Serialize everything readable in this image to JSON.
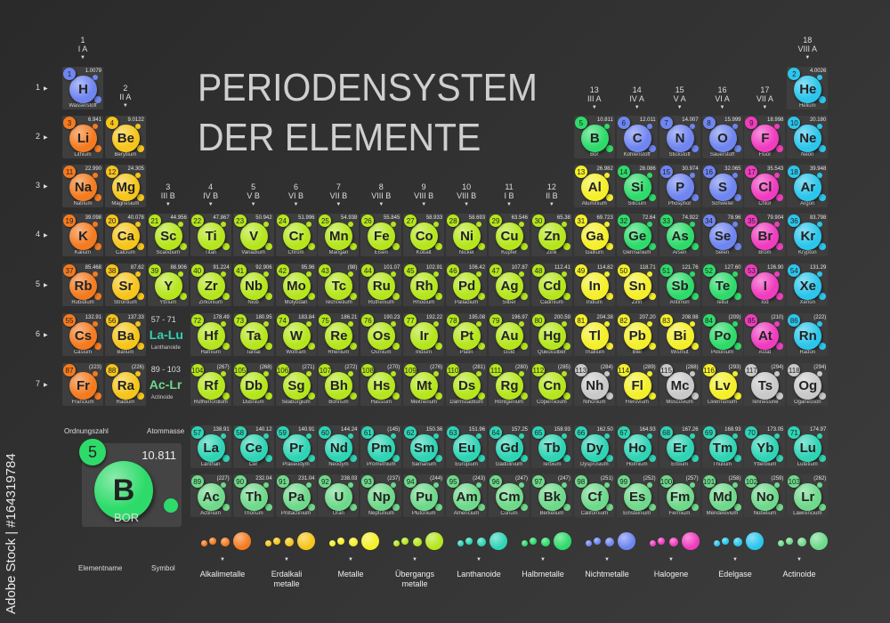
{
  "title": {
    "line1": "PERIODENSYSTEM",
    "line2": "DER ELEMENTE"
  },
  "side_watermark": "Adobe Stock | #164319784",
  "category_colors": {
    "alkali": "#f47b20",
    "alkaline": "#f6c51b",
    "transition": "#b5e61d",
    "metal": "#f4ef2a",
    "lanthanoid": "#2fd4b5",
    "metalloid": "#2edb6a",
    "nonmetal": "#6f85f0",
    "halogen": "#f03cbf",
    "noble": "#2cc6ec",
    "actinoid": "#6fd98b",
    "unknown": "#c9c9c9"
  },
  "groups": [
    {
      "n": "1",
      "r": "I A"
    },
    {
      "n": "2",
      "r": "II A"
    },
    {
      "n": "3",
      "r": "III B"
    },
    {
      "n": "4",
      "r": "IV B"
    },
    {
      "n": "5",
      "r": "V B"
    },
    {
      "n": "6",
      "r": "VI B"
    },
    {
      "n": "7",
      "r": "VII B"
    },
    {
      "n": "8",
      "r": "VIII B"
    },
    {
      "n": "9",
      "r": "VIII B"
    },
    {
      "n": "10",
      "r": "VIII B"
    },
    {
      "n": "11",
      "r": "I B"
    },
    {
      "n": "12",
      "r": "II B"
    },
    {
      "n": "13",
      "r": "III A"
    },
    {
      "n": "14",
      "r": "IV A"
    },
    {
      "n": "15",
      "r": "V A"
    },
    {
      "n": "16",
      "r": "VI A"
    },
    {
      "n": "17",
      "r": "VII A"
    },
    {
      "n": "18",
      "r": "VIII A"
    }
  ],
  "periods": [
    "1",
    "2",
    "3",
    "4",
    "5",
    "6",
    "7"
  ],
  "elements": [
    {
      "n": "1",
      "s": "H",
      "name": "Wasserstoff",
      "m": "1.0079",
      "c": "nonmetal",
      "p": 1,
      "g": 1
    },
    {
      "n": "2",
      "s": "He",
      "name": "Helium",
      "m": "4.0026",
      "c": "noble",
      "p": 1,
      "g": 18
    },
    {
      "n": "3",
      "s": "Li",
      "name": "Lithium",
      "m": "6.941",
      "c": "alkali",
      "p": 2,
      "g": 1
    },
    {
      "n": "4",
      "s": "Be",
      "name": "Beryllium",
      "m": "9.0122",
      "c": "alkaline",
      "p": 2,
      "g": 2
    },
    {
      "n": "5",
      "s": "B",
      "name": "Bor",
      "m": "10.811",
      "c": "metalloid",
      "p": 2,
      "g": 13
    },
    {
      "n": "6",
      "s": "C",
      "name": "Kohlenstoff",
      "m": "12.011",
      "c": "nonmetal",
      "p": 2,
      "g": 14
    },
    {
      "n": "7",
      "s": "N",
      "name": "Stickstoff",
      "m": "14.007",
      "c": "nonmetal",
      "p": 2,
      "g": 15
    },
    {
      "n": "8",
      "s": "O",
      "name": "Sauerstoff",
      "m": "15.999",
      "c": "nonmetal",
      "p": 2,
      "g": 16
    },
    {
      "n": "9",
      "s": "F",
      "name": "Fluor",
      "m": "18.998",
      "c": "halogen",
      "p": 2,
      "g": 17
    },
    {
      "n": "10",
      "s": "Ne",
      "name": "Neon",
      "m": "20.180",
      "c": "noble",
      "p": 2,
      "g": 18
    },
    {
      "n": "11",
      "s": "Na",
      "name": "Natrium",
      "m": "22.990",
      "c": "alkali",
      "p": 3,
      "g": 1
    },
    {
      "n": "12",
      "s": "Mg",
      "name": "Magnesium",
      "m": "24.305",
      "c": "alkaline",
      "p": 3,
      "g": 2
    },
    {
      "n": "13",
      "s": "Al",
      "name": "Aluminium",
      "m": "26.982",
      "c": "metal",
      "p": 3,
      "g": 13
    },
    {
      "n": "14",
      "s": "Si",
      "name": "Silicium",
      "m": "28.086",
      "c": "metalloid",
      "p": 3,
      "g": 14
    },
    {
      "n": "15",
      "s": "P",
      "name": "Phosphor",
      "m": "30.974",
      "c": "nonmetal",
      "p": 3,
      "g": 15
    },
    {
      "n": "16",
      "s": "S",
      "name": "Schwefel",
      "m": "32.065",
      "c": "nonmetal",
      "p": 3,
      "g": 16
    },
    {
      "n": "17",
      "s": "Cl",
      "name": "Chlor",
      "m": "35.543",
      "c": "halogen",
      "p": 3,
      "g": 17
    },
    {
      "n": "18",
      "s": "Ar",
      "name": "Argon",
      "m": "39.948",
      "c": "noble",
      "p": 3,
      "g": 18
    },
    {
      "n": "19",
      "s": "K",
      "name": "Kalium",
      "m": "39.098",
      "c": "alkali",
      "p": 4,
      "g": 1
    },
    {
      "n": "20",
      "s": "Ca",
      "name": "Calcium",
      "m": "40.078",
      "c": "alkaline",
      "p": 4,
      "g": 2
    },
    {
      "n": "21",
      "s": "Sc",
      "name": "Scandium",
      "m": "44.956",
      "c": "transition",
      "p": 4,
      "g": 3
    },
    {
      "n": "22",
      "s": "Ti",
      "name": "Titan",
      "m": "47.867",
      "c": "transition",
      "p": 4,
      "g": 4
    },
    {
      "n": "23",
      "s": "V",
      "name": "Vanadium",
      "m": "50.942",
      "c": "transition",
      "p": 4,
      "g": 5
    },
    {
      "n": "24",
      "s": "Cr",
      "name": "Chrom",
      "m": "51.996",
      "c": "transition",
      "p": 4,
      "g": 6
    },
    {
      "n": "25",
      "s": "Mn",
      "name": "Mangan",
      "m": "54.938",
      "c": "transition",
      "p": 4,
      "g": 7
    },
    {
      "n": "26",
      "s": "Fe",
      "name": "Eisen",
      "m": "55.845",
      "c": "transition",
      "p": 4,
      "g": 8
    },
    {
      "n": "27",
      "s": "Co",
      "name": "Kobalt",
      "m": "58.933",
      "c": "transition",
      "p": 4,
      "g": 9
    },
    {
      "n": "28",
      "s": "Ni",
      "name": "Nickel",
      "m": "58.693",
      "c": "transition",
      "p": 4,
      "g": 10
    },
    {
      "n": "29",
      "s": "Cu",
      "name": "Kupfer",
      "m": "63.546",
      "c": "transition",
      "p": 4,
      "g": 11
    },
    {
      "n": "30",
      "s": "Zn",
      "name": "Zink",
      "m": "65.38",
      "c": "transition",
      "p": 4,
      "g": 12
    },
    {
      "n": "31",
      "s": "Ga",
      "name": "Gallium",
      "m": "69.723",
      "c": "metal",
      "p": 4,
      "g": 13
    },
    {
      "n": "32",
      "s": "Ge",
      "name": "Germanium",
      "m": "72.64",
      "c": "metalloid",
      "p": 4,
      "g": 14
    },
    {
      "n": "33",
      "s": "As",
      "name": "Arsen",
      "m": "74.922",
      "c": "metalloid",
      "p": 4,
      "g": 15
    },
    {
      "n": "34",
      "s": "Se",
      "name": "Selen",
      "m": "78.96",
      "c": "nonmetal",
      "p": 4,
      "g": 16
    },
    {
      "n": "35",
      "s": "Br",
      "name": "Brom",
      "m": "79.904",
      "c": "halogen",
      "p": 4,
      "g": 17
    },
    {
      "n": "36",
      "s": "Kr",
      "name": "Krypton",
      "m": "83.798",
      "c": "noble",
      "p": 4,
      "g": 18
    },
    {
      "n": "37",
      "s": "Rb",
      "name": "Rubidium",
      "m": "85.468",
      "c": "alkali",
      "p": 5,
      "g": 1
    },
    {
      "n": "38",
      "s": "Sr",
      "name": "Strontium",
      "m": "87.62",
      "c": "alkaline",
      "p": 5,
      "g": 2
    },
    {
      "n": "39",
      "s": "Y",
      "name": "Yttrium",
      "m": "88.906",
      "c": "transition",
      "p": 5,
      "g": 3
    },
    {
      "n": "40",
      "s": "Zr",
      "name": "Zirkonium",
      "m": "91.224",
      "c": "transition",
      "p": 5,
      "g": 4
    },
    {
      "n": "41",
      "s": "Nb",
      "name": "Niob",
      "m": "92.906",
      "c": "transition",
      "p": 5,
      "g": 5
    },
    {
      "n": "42",
      "s": "Mo",
      "name": "Molybdän",
      "m": "95.96",
      "c": "transition",
      "p": 5,
      "g": 6
    },
    {
      "n": "43",
      "s": "Tc",
      "name": "Technetium",
      "m": "(98)",
      "c": "transition",
      "p": 5,
      "g": 7
    },
    {
      "n": "44",
      "s": "Ru",
      "name": "Ruthenium",
      "m": "101.07",
      "c": "transition",
      "p": 5,
      "g": 8
    },
    {
      "n": "45",
      "s": "Rh",
      "name": "Rhodium",
      "m": "102.91",
      "c": "transition",
      "p": 5,
      "g": 9
    },
    {
      "n": "46",
      "s": "Pd",
      "name": "Palladium",
      "m": "106.42",
      "c": "transition",
      "p": 5,
      "g": 10
    },
    {
      "n": "47",
      "s": "Ag",
      "name": "Silber",
      "m": "107.87",
      "c": "transition",
      "p": 5,
      "g": 11
    },
    {
      "n": "48",
      "s": "Cd",
      "name": "Cadmium",
      "m": "112.41",
      "c": "transition",
      "p": 5,
      "g": 12
    },
    {
      "n": "49",
      "s": "In",
      "name": "Indium",
      "m": "114.82",
      "c": "metal",
      "p": 5,
      "g": 13
    },
    {
      "n": "50",
      "s": "Sn",
      "name": "Zinn",
      "m": "118.71",
      "c": "metal",
      "p": 5,
      "g": 14
    },
    {
      "n": "51",
      "s": "Sb",
      "name": "Antimon",
      "m": "121.76",
      "c": "metalloid",
      "p": 5,
      "g": 15
    },
    {
      "n": "52",
      "s": "Te",
      "name": "Tellur",
      "m": "127.60",
      "c": "metalloid",
      "p": 5,
      "g": 16
    },
    {
      "n": "53",
      "s": "I",
      "name": "Iod",
      "m": "126.90",
      "c": "halogen",
      "p": 5,
      "g": 17
    },
    {
      "n": "54",
      "s": "Xe",
      "name": "Xenon",
      "m": "131.29",
      "c": "noble",
      "p": 5,
      "g": 18
    },
    {
      "n": "55",
      "s": "Cs",
      "name": "Cäsium",
      "m": "132.91",
      "c": "alkali",
      "p": 6,
      "g": 1
    },
    {
      "n": "56",
      "s": "Ba",
      "name": "Barium",
      "m": "137.33",
      "c": "alkaline",
      "p": 6,
      "g": 2
    },
    {
      "n": "72",
      "s": "Hf",
      "name": "Hafnium",
      "m": "178.49",
      "c": "transition",
      "p": 6,
      "g": 4
    },
    {
      "n": "73",
      "s": "Ta",
      "name": "Tantal",
      "m": "180.95",
      "c": "transition",
      "p": 6,
      "g": 5
    },
    {
      "n": "74",
      "s": "W",
      "name": "Wolfram",
      "m": "183.84",
      "c": "transition",
      "p": 6,
      "g": 6
    },
    {
      "n": "75",
      "s": "Re",
      "name": "Rhenium",
      "m": "186.21",
      "c": "transition",
      "p": 6,
      "g": 7
    },
    {
      "n": "76",
      "s": "Os",
      "name": "Osmium",
      "m": "190.23",
      "c": "transition",
      "p": 6,
      "g": 8
    },
    {
      "n": "77",
      "s": "Ir",
      "name": "Iridium",
      "m": "192.22",
      "c": "transition",
      "p": 6,
      "g": 9
    },
    {
      "n": "78",
      "s": "Pt",
      "name": "Platin",
      "m": "195.08",
      "c": "transition",
      "p": 6,
      "g": 10
    },
    {
      "n": "79",
      "s": "Au",
      "name": "Gold",
      "m": "196.97",
      "c": "transition",
      "p": 6,
      "g": 11
    },
    {
      "n": "80",
      "s": "Hg",
      "name": "Quecksilber",
      "m": "200.59",
      "c": "transition",
      "p": 6,
      "g": 12
    },
    {
      "n": "81",
      "s": "Tl",
      "name": "Thallium",
      "m": "204.38",
      "c": "metal",
      "p": 6,
      "g": 13
    },
    {
      "n": "82",
      "s": "Pb",
      "name": "Blei",
      "m": "207.20",
      "c": "metal",
      "p": 6,
      "g": 14
    },
    {
      "n": "83",
      "s": "Bi",
      "name": "Wismut",
      "m": "208.98",
      "c": "metal",
      "p": 6,
      "g": 15
    },
    {
      "n": "84",
      "s": "Po",
      "name": "Polonium",
      "m": "(209)",
      "c": "metalloid",
      "p": 6,
      "g": 16
    },
    {
      "n": "85",
      "s": "At",
      "name": "Astat",
      "m": "(210)",
      "c": "halogen",
      "p": 6,
      "g": 17
    },
    {
      "n": "86",
      "s": "Rn",
      "name": "Radon",
      "m": "(222)",
      "c": "noble",
      "p": 6,
      "g": 18
    },
    {
      "n": "87",
      "s": "Fr",
      "name": "Francium",
      "m": "(223)",
      "c": "alkali",
      "p": 7,
      "g": 1
    },
    {
      "n": "88",
      "s": "Ra",
      "name": "Radium",
      "m": "(226)",
      "c": "alkaline",
      "p": 7,
      "g": 2
    },
    {
      "n": "104",
      "s": "Rf",
      "name": "Rutherfordium",
      "m": "(267)",
      "c": "transition",
      "p": 7,
      "g": 4
    },
    {
      "n": "105",
      "s": "Db",
      "name": "Dubnium",
      "m": "(268)",
      "c": "transition",
      "p": 7,
      "g": 5
    },
    {
      "n": "106",
      "s": "Sg",
      "name": "Seaborgium",
      "m": "(271)",
      "c": "transition",
      "p": 7,
      "g": 6
    },
    {
      "n": "107",
      "s": "Bh",
      "name": "Bohrium",
      "m": "(272)",
      "c": "transition",
      "p": 7,
      "g": 7
    },
    {
      "n": "108",
      "s": "Hs",
      "name": "Hassium",
      "m": "(270)",
      "c": "transition",
      "p": 7,
      "g": 8
    },
    {
      "n": "109",
      "s": "Mt",
      "name": "Meitnerium",
      "m": "(276)",
      "c": "transition",
      "p": 7,
      "g": 9
    },
    {
      "n": "110",
      "s": "Ds",
      "name": "Darmstadtium",
      "m": "(281)",
      "c": "transition",
      "p": 7,
      "g": 10
    },
    {
      "n": "111",
      "s": "Rg",
      "name": "Röntgenium",
      "m": "(280)",
      "c": "transition",
      "p": 7,
      "g": 11
    },
    {
      "n": "112",
      "s": "Cn",
      "name": "Copernicium",
      "m": "(285)",
      "c": "transition",
      "p": 7,
      "g": 12
    },
    {
      "n": "113",
      "s": "Nh",
      "name": "Nihonium",
      "m": "(284)",
      "c": "unknown",
      "p": 7,
      "g": 13
    },
    {
      "n": "114",
      "s": "Fl",
      "name": "Flerovium",
      "m": "(289)",
      "c": "metal",
      "p": 7,
      "g": 14
    },
    {
      "n": "115",
      "s": "Mc",
      "name": "Moscovium",
      "m": "(288)",
      "c": "unknown",
      "p": 7,
      "g": 15
    },
    {
      "n": "116",
      "s": "Lv",
      "name": "Livermorium",
      "m": "(293)",
      "c": "metal",
      "p": 7,
      "g": 16
    },
    {
      "n": "117",
      "s": "Ts",
      "name": "Tennessine",
      "m": "(294)",
      "c": "unknown",
      "p": 7,
      "g": 17
    },
    {
      "n": "118",
      "s": "Og",
      "name": "Oganesson",
      "m": "(294)",
      "c": "unknown",
      "p": 7,
      "g": 18
    }
  ],
  "placeholders": [
    {
      "range": "57 - 71",
      "symbols": "La-Lu",
      "name": "Lanthanoide",
      "c": "lanthanoid"
    },
    {
      "range": "89 - 103",
      "symbols": "Ac-Lr",
      "name": "Actinoide",
      "c": "actinoid"
    }
  ],
  "lanthanoids": [
    {
      "n": "57",
      "s": "La",
      "name": "Lanthan",
      "m": "138.91"
    },
    {
      "n": "58",
      "s": "Ce",
      "name": "Cer",
      "m": "140.12"
    },
    {
      "n": "59",
      "s": "Pr",
      "name": "Praseodym",
      "m": "140.91"
    },
    {
      "n": "60",
      "s": "Nd",
      "name": "Neodym",
      "m": "144.24"
    },
    {
      "n": "61",
      "s": "Pm",
      "name": "Promethium",
      "m": "(145)"
    },
    {
      "n": "62",
      "s": "Sm",
      "name": "Samarium",
      "m": "150.36"
    },
    {
      "n": "63",
      "s": "Eu",
      "name": "Europium",
      "m": "151.96"
    },
    {
      "n": "64",
      "s": "Gd",
      "name": "Gadolinium",
      "m": "157.25"
    },
    {
      "n": "65",
      "s": "Tb",
      "name": "Terbium",
      "m": "158.93"
    },
    {
      "n": "66",
      "s": "Dy",
      "name": "Dysprosium",
      "m": "162.50"
    },
    {
      "n": "67",
      "s": "Ho",
      "name": "Holmium",
      "m": "164.93"
    },
    {
      "n": "68",
      "s": "Er",
      "name": "Erbium",
      "m": "167.26"
    },
    {
      "n": "69",
      "s": "Tm",
      "name": "Thulium",
      "m": "168.93"
    },
    {
      "n": "70",
      "s": "Yb",
      "name": "Ytterbium",
      "m": "173.05"
    },
    {
      "n": "71",
      "s": "Lu",
      "name": "Lutetium",
      "m": "174.97"
    }
  ],
  "actinoids": [
    {
      "n": "89",
      "s": "Ac",
      "name": "Actinium",
      "m": "(227)"
    },
    {
      "n": "90",
      "s": "Th",
      "name": "Thorium",
      "m": "232.04"
    },
    {
      "n": "91",
      "s": "Pa",
      "name": "Protactinium",
      "m": "231.04"
    },
    {
      "n": "92",
      "s": "U",
      "name": "Uran",
      "m": "238.03"
    },
    {
      "n": "93",
      "s": "Np",
      "name": "Neptunium",
      "m": "(237)"
    },
    {
      "n": "94",
      "s": "Pu",
      "name": "Plutonium",
      "m": "(244)"
    },
    {
      "n": "95",
      "s": "Am",
      "name": "Americium",
      "m": "(243)"
    },
    {
      "n": "96",
      "s": "Cm",
      "name": "Curium",
      "m": "(247)"
    },
    {
      "n": "97",
      "s": "Bk",
      "name": "Berkelium",
      "m": "(247)"
    },
    {
      "n": "98",
      "s": "Cf",
      "name": "Californium",
      "m": "(251)"
    },
    {
      "n": "99",
      "s": "Es",
      "name": "Einsteinium",
      "m": "(252)"
    },
    {
      "n": "100",
      "s": "Fm",
      "name": "Fermium",
      "m": "(257)"
    },
    {
      "n": "101",
      "s": "Md",
      "name": "Mendelevium",
      "m": "(258)"
    },
    {
      "n": "102",
      "s": "No",
      "name": "Nobelium",
      "m": "(259)"
    },
    {
      "n": "103",
      "s": "Lr",
      "name": "Lawrencium",
      "m": "(262)"
    }
  ],
  "key": {
    "number": "5",
    "mass": "10.811",
    "symbol": "B",
    "name": "BOR",
    "c": "metalloid",
    "label_number": "Ordnungszahl",
    "label_mass": "Atommasse",
    "label_name": "Elementname",
    "label_symbol": "Symbol"
  },
  "legend": [
    {
      "label": "Alkalimetalle",
      "c": "alkali"
    },
    {
      "label": "Erdalkali\nmetalle",
      "c": "alkaline"
    },
    {
      "label": "Metalle",
      "c": "metal"
    },
    {
      "label": "Übergangs\nmetalle",
      "c": "transition"
    },
    {
      "label": "Lanthanoide",
      "c": "lanthanoid"
    },
    {
      "label": "Halbmetalle",
      "c": "metalloid"
    },
    {
      "label": "Nichtmetalle",
      "c": "nonmetal"
    },
    {
      "label": "Halogene",
      "c": "halogen"
    },
    {
      "label": "Edelgase",
      "c": "noble"
    },
    {
      "label": "Actinoide",
      "c": "actinoid"
    }
  ]
}
